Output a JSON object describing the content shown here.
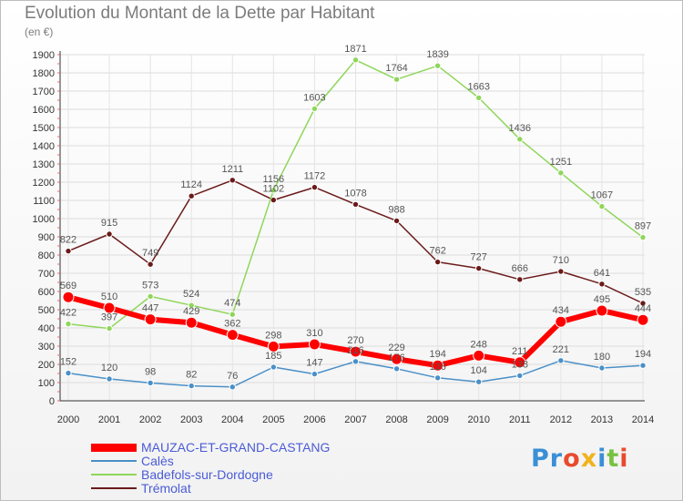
{
  "title": "Evolution du Montant de la Dette par Habitant",
  "subtitle": "(en €)",
  "logo": {
    "text": "Proxiti",
    "colors": [
      "#3a8fd6",
      "#3a8fd6",
      "#e84b2c",
      "#f0b31e",
      "#3a8fd6",
      "#79c142",
      "#e84b2c"
    ]
  },
  "chart_data": {
    "type": "line",
    "x": [
      "2000",
      "2001",
      "2002",
      "2003",
      "2004",
      "2005",
      "2006",
      "2007",
      "2008",
      "2009",
      "2010",
      "2011",
      "2012",
      "2013",
      "2014"
    ],
    "ylim": [
      0,
      1900
    ],
    "yticks": [
      0,
      100,
      200,
      300,
      400,
      500,
      600,
      700,
      800,
      900,
      1000,
      1100,
      1200,
      1300,
      1400,
      1500,
      1600,
      1700,
      1800,
      1900
    ],
    "grid": true,
    "legend_position": "bottom-left",
    "series": [
      {
        "name": "MAUZAC-ET-GRAND-CASTANG",
        "color": "#ff0000",
        "values": [
          569,
          510,
          447,
          429,
          362,
          298,
          310,
          270,
          229,
          194,
          248,
          211,
          434,
          495,
          444
        ]
      },
      {
        "name": "Calès",
        "color": "#4a90c8",
        "values": [
          152,
          120,
          98,
          82,
          76,
          185,
          147,
          216,
          176,
          126,
          104,
          138,
          221,
          180,
          194
        ]
      },
      {
        "name": "Badefols-sur-Dordogne",
        "color": "#8fd65a",
        "values": [
          422,
          397,
          573,
          524,
          474,
          1156,
          1603,
          1871,
          1764,
          1839,
          1663,
          1436,
          1251,
          1067,
          897
        ]
      },
      {
        "name": "Trémolat",
        "color": "#6b1a1a",
        "values": [
          822,
          915,
          749,
          1124,
          1211,
          1102,
          1172,
          1078,
          988,
          762,
          727,
          666,
          710,
          641,
          535
        ]
      }
    ]
  }
}
